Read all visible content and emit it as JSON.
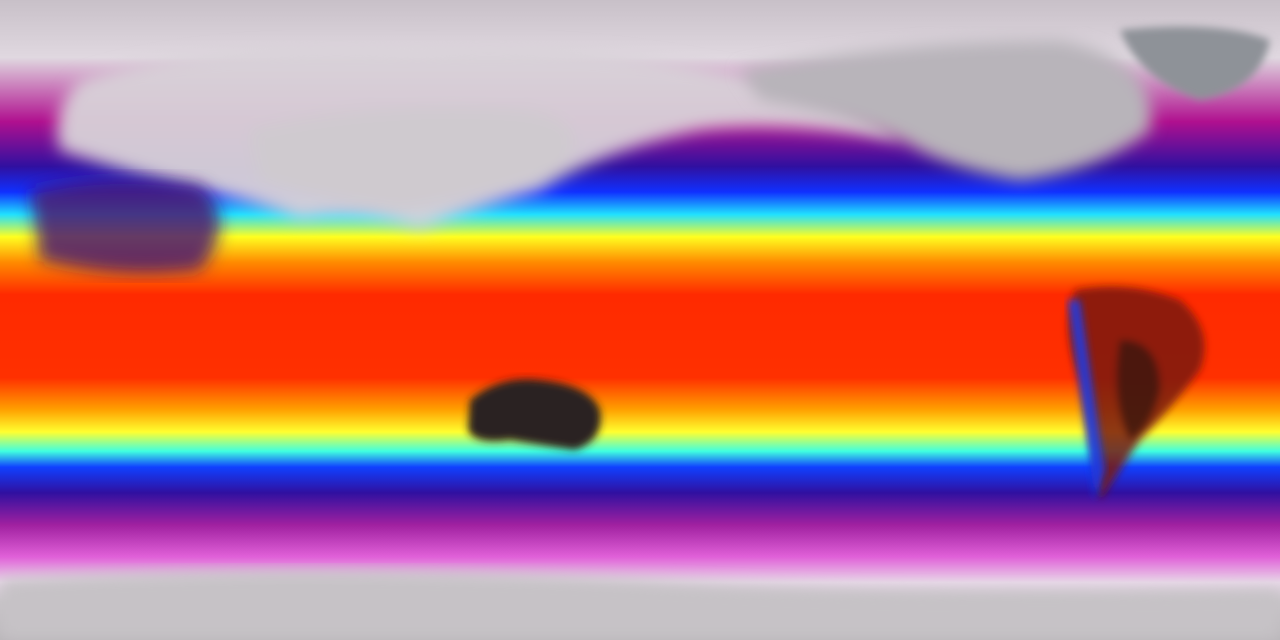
{
  "map": {
    "projection": "equirectangular",
    "colormap": [
      "#d8d2d8",
      "#b0108f",
      "#3010a0",
      "#1030ff",
      "#20e0ff",
      "#ffff20",
      "#ff8000",
      "#ff2000",
      "#b01000",
      "#2a2020"
    ],
    "land_colors": {
      "polar": "#c9c4c9",
      "australia_interior": "#2a2020",
      "south_america_interior": "#7a1a10"
    }
  }
}
